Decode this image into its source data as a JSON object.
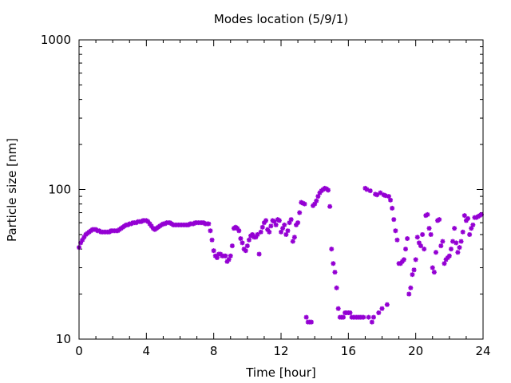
{
  "chart_data": {
    "type": "scatter",
    "title": "Modes location (5/9/1)",
    "xlabel": "Time [hour]",
    "ylabel": "Particle size [nm]",
    "xlim": [
      0,
      24
    ],
    "ylim": [
      10,
      1000
    ],
    "yscale": "log",
    "xticks": [
      "0",
      "4",
      "8",
      "12",
      "16",
      "20",
      "24"
    ],
    "yticks": [
      "10",
      "100",
      "1000"
    ],
    "grid": false,
    "marker_color": "#9400d3",
    "series": [
      {
        "points": [
          [
            0.0,
            41
          ],
          [
            0.1,
            44
          ],
          [
            0.2,
            46
          ],
          [
            0.3,
            48
          ],
          [
            0.4,
            50
          ],
          [
            0.5,
            51
          ],
          [
            0.6,
            52
          ],
          [
            0.7,
            53
          ],
          [
            0.8,
            54
          ],
          [
            0.9,
            54
          ],
          [
            1.0,
            54
          ],
          [
            1.1,
            53
          ],
          [
            1.2,
            53
          ],
          [
            1.3,
            52
          ],
          [
            1.4,
            52
          ],
          [
            1.5,
            52
          ],
          [
            1.6,
            52
          ],
          [
            1.7,
            52
          ],
          [
            1.8,
            52
          ],
          [
            1.9,
            53
          ],
          [
            2.0,
            53
          ],
          [
            2.1,
            53
          ],
          [
            2.2,
            53
          ],
          [
            2.3,
            53
          ],
          [
            2.4,
            54
          ],
          [
            2.5,
            55
          ],
          [
            2.6,
            56
          ],
          [
            2.7,
            57
          ],
          [
            2.8,
            58
          ],
          [
            2.9,
            58
          ],
          [
            3.0,
            59
          ],
          [
            3.1,
            59
          ],
          [
            3.2,
            60
          ],
          [
            3.3,
            60
          ],
          [
            3.4,
            60
          ],
          [
            3.5,
            61
          ],
          [
            3.6,
            61
          ],
          [
            3.7,
            61
          ],
          [
            3.8,
            62
          ],
          [
            3.9,
            62
          ],
          [
            4.0,
            62
          ],
          [
            4.1,
            61
          ],
          [
            4.2,
            59
          ],
          [
            4.3,
            57
          ],
          [
            4.4,
            55
          ],
          [
            4.5,
            54
          ],
          [
            4.6,
            55
          ],
          [
            4.7,
            56
          ],
          [
            4.8,
            57
          ],
          [
            4.9,
            58
          ],
          [
            5.0,
            59
          ],
          [
            5.1,
            59
          ],
          [
            5.2,
            60
          ],
          [
            5.3,
            60
          ],
          [
            5.4,
            60
          ],
          [
            5.5,
            59
          ],
          [
            5.6,
            58
          ],
          [
            5.7,
            58
          ],
          [
            5.8,
            58
          ],
          [
            5.9,
            58
          ],
          [
            6.0,
            58
          ],
          [
            6.1,
            58
          ],
          [
            6.2,
            58
          ],
          [
            6.3,
            58
          ],
          [
            6.4,
            58
          ],
          [
            6.5,
            58
          ],
          [
            6.6,
            59
          ],
          [
            6.7,
            59
          ],
          [
            6.8,
            59
          ],
          [
            6.9,
            60
          ],
          [
            7.0,
            60
          ],
          [
            7.1,
            60
          ],
          [
            7.2,
            60
          ],
          [
            7.3,
            60
          ],
          [
            7.4,
            60
          ],
          [
            7.5,
            59
          ],
          [
            7.6,
            59
          ],
          [
            7.7,
            59
          ],
          [
            7.8,
            53
          ],
          [
            7.9,
            46
          ],
          [
            8.0,
            39
          ],
          [
            8.1,
            36
          ],
          [
            8.2,
            35
          ],
          [
            8.3,
            37
          ],
          [
            8.4,
            37
          ],
          [
            8.5,
            36
          ],
          [
            8.6,
            36
          ],
          [
            8.7,
            36
          ],
          [
            8.8,
            33
          ],
          [
            8.9,
            34
          ],
          [
            9.0,
            36
          ],
          [
            9.1,
            42
          ],
          [
            9.2,
            55
          ],
          [
            9.3,
            56
          ],
          [
            9.4,
            55
          ],
          [
            9.5,
            53
          ],
          [
            9.6,
            47
          ],
          [
            9.7,
            44
          ],
          [
            9.8,
            40
          ],
          [
            9.9,
            39
          ],
          [
            10.0,
            42
          ],
          [
            10.1,
            46
          ],
          [
            10.2,
            49
          ],
          [
            10.3,
            50
          ],
          [
            10.4,
            48
          ],
          [
            10.5,
            48
          ],
          [
            10.6,
            50
          ],
          [
            10.7,
            37
          ],
          [
            10.8,
            52
          ],
          [
            10.9,
            56
          ],
          [
            11.0,
            60
          ],
          [
            11.1,
            62
          ],
          [
            11.2,
            54
          ],
          [
            11.3,
            52
          ],
          [
            11.4,
            57
          ],
          [
            11.5,
            62
          ],
          [
            11.6,
            61
          ],
          [
            11.7,
            58
          ],
          [
            11.8,
            63
          ],
          [
            11.9,
            62
          ],
          [
            12.0,
            52
          ],
          [
            12.1,
            55
          ],
          [
            12.2,
            58
          ],
          [
            12.3,
            50
          ],
          [
            12.4,
            53
          ],
          [
            12.5,
            60
          ],
          [
            12.6,
            63
          ],
          [
            12.7,
            45
          ],
          [
            12.8,
            48
          ],
          [
            12.9,
            58
          ],
          [
            13.0,
            60
          ],
          [
            13.1,
            70
          ],
          [
            13.2,
            82
          ],
          [
            13.3,
            81
          ],
          [
            13.4,
            80
          ],
          [
            13.5,
            14
          ],
          [
            13.6,
            13
          ],
          [
            13.7,
            13
          ],
          [
            13.8,
            13
          ],
          [
            13.9,
            78
          ],
          [
            14.0,
            80
          ],
          [
            14.1,
            84
          ],
          [
            14.2,
            90
          ],
          [
            14.3,
            95
          ],
          [
            14.4,
            98
          ],
          [
            14.5,
            100
          ],
          [
            14.6,
            102
          ],
          [
            14.7,
            101
          ],
          [
            14.8,
            99
          ],
          [
            14.9,
            77
          ],
          [
            15.0,
            40
          ],
          [
            15.1,
            32
          ],
          [
            15.2,
            28
          ],
          [
            15.3,
            22
          ],
          [
            15.4,
            16
          ],
          [
            15.5,
            14
          ],
          [
            15.6,
            14
          ],
          [
            15.7,
            14
          ],
          [
            15.8,
            15
          ],
          [
            15.9,
            15
          ],
          [
            16.0,
            15
          ],
          [
            16.1,
            15
          ],
          [
            16.2,
            14
          ],
          [
            16.3,
            14
          ],
          [
            16.4,
            14
          ],
          [
            16.5,
            14
          ],
          [
            16.6,
            14
          ],
          [
            16.7,
            14
          ],
          [
            16.8,
            14
          ],
          [
            16.9,
            14
          ],
          [
            17.0,
            102
          ],
          [
            17.1,
            100
          ],
          [
            17.2,
            14
          ],
          [
            17.3,
            98
          ],
          [
            17.4,
            13
          ],
          [
            17.5,
            14
          ],
          [
            17.6,
            93
          ],
          [
            17.7,
            92
          ],
          [
            17.8,
            15
          ],
          [
            17.9,
            95
          ],
          [
            18.0,
            16
          ],
          [
            18.1,
            92
          ],
          [
            18.2,
            91
          ],
          [
            18.3,
            17
          ],
          [
            18.4,
            90
          ],
          [
            18.5,
            85
          ],
          [
            18.6,
            75
          ],
          [
            18.7,
            63
          ],
          [
            18.8,
            53
          ],
          [
            18.9,
            46
          ],
          [
            19.0,
            32
          ],
          [
            19.1,
            32
          ],
          [
            19.2,
            33
          ],
          [
            19.3,
            34
          ],
          [
            19.4,
            40
          ],
          [
            19.5,
            47
          ],
          [
            19.6,
            20
          ],
          [
            19.7,
            22
          ],
          [
            19.8,
            27
          ],
          [
            19.9,
            29
          ],
          [
            20.0,
            34
          ],
          [
            20.1,
            48
          ],
          [
            20.2,
            44
          ],
          [
            20.3,
            42
          ],
          [
            20.4,
            50
          ],
          [
            20.5,
            40
          ],
          [
            20.6,
            67
          ],
          [
            20.7,
            68
          ],
          [
            20.8,
            55
          ],
          [
            20.9,
            50
          ],
          [
            21.0,
            30
          ],
          [
            21.1,
            28
          ],
          [
            21.2,
            38
          ],
          [
            21.3,
            62
          ],
          [
            21.4,
            63
          ],
          [
            21.5,
            42
          ],
          [
            21.6,
            45
          ],
          [
            21.7,
            32
          ],
          [
            21.8,
            34
          ],
          [
            21.9,
            35
          ],
          [
            22.0,
            36
          ],
          [
            22.1,
            40
          ],
          [
            22.2,
            45
          ],
          [
            22.3,
            55
          ],
          [
            22.4,
            44
          ],
          [
            22.5,
            38
          ],
          [
            22.6,
            41
          ],
          [
            22.7,
            45
          ],
          [
            22.8,
            52
          ],
          [
            22.9,
            67
          ],
          [
            23.0,
            62
          ],
          [
            23.1,
            64
          ],
          [
            23.2,
            50
          ],
          [
            23.3,
            55
          ],
          [
            23.4,
            58
          ],
          [
            23.5,
            65
          ],
          [
            23.6,
            65
          ],
          [
            23.7,
            66
          ],
          [
            23.8,
            67
          ],
          [
            23.9,
            68
          ]
        ]
      }
    ]
  }
}
